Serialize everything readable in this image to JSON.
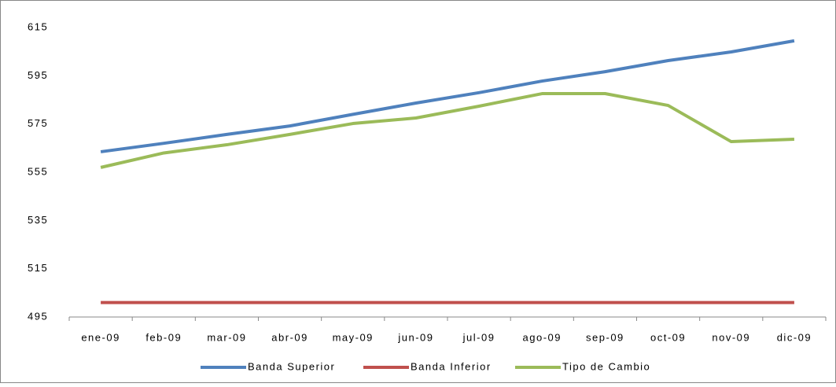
{
  "chart_data": {
    "type": "line",
    "categories": [
      "ene-09",
      "feb-09",
      "mar-09",
      "abr-09",
      "may-09",
      "jun-09",
      "jul-09",
      "ago-09",
      "sep-09",
      "oct-09",
      "nov-09",
      "dic-09"
    ],
    "series": [
      {
        "name": "Banda Superior",
        "color": "#4f81bd",
        "values": [
          563.5,
          567,
          570.7,
          574.2,
          579,
          583.7,
          588,
          592.8,
          596.7,
          601.3,
          604.9,
          609.5
        ]
      },
      {
        "name": "Banda Inferior",
        "color": "#c0504d",
        "values": [
          501,
          501,
          501,
          501,
          501,
          501,
          501,
          501,
          501,
          501,
          501,
          501
        ]
      },
      {
        "name": "Tipo de Cambio",
        "color": "#9bbb59",
        "values": [
          557,
          563,
          566.4,
          570.7,
          575.2,
          577.5,
          582.4,
          587.6,
          587.6,
          582.7,
          567.7,
          568.7
        ]
      }
    ],
    "ylim": [
      495,
      615
    ],
    "yticks": [
      495,
      515,
      535,
      555,
      575,
      595,
      615
    ],
    "grid": false,
    "legend": "bottom"
  }
}
